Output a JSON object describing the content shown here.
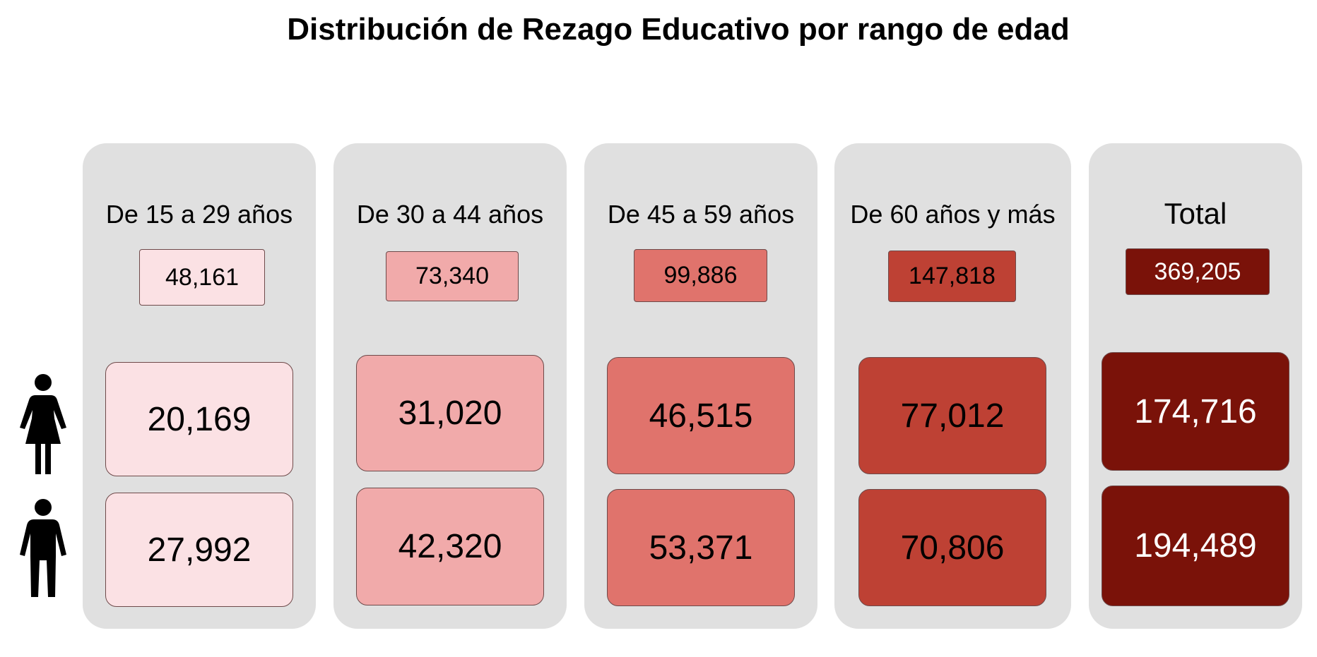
{
  "title": "Distribución de Rezago Educativo por rango de edad",
  "icons": {
    "female": "woman-icon",
    "male": "man-icon"
  },
  "columns": [
    {
      "label": "De 15 a 29 años",
      "total": "48,161",
      "female": "20,169",
      "male": "27,992",
      "color": "#fbe1e4",
      "text_color": "#000000"
    },
    {
      "label": "De 30 a 44 años",
      "total": "73,340",
      "female": "31,020",
      "male": "42,320",
      "color": "#f1aaaa",
      "text_color": "#000000"
    },
    {
      "label": "De 45 a 59 años",
      "total": "99,886",
      "female": "46,515",
      "male": "53,371",
      "color": "#e0736c",
      "text_color": "#000000"
    },
    {
      "label": "De 60 años y más",
      "total": "147,818",
      "female": "77,012",
      "male": "70,806",
      "color": "#be4134",
      "text_color": "#000000"
    },
    {
      "label": "Total",
      "total": "369,205",
      "female": "174,716",
      "male": "194,489",
      "color": "#7a1209",
      "text_color": "#ffffff"
    }
  ]
}
